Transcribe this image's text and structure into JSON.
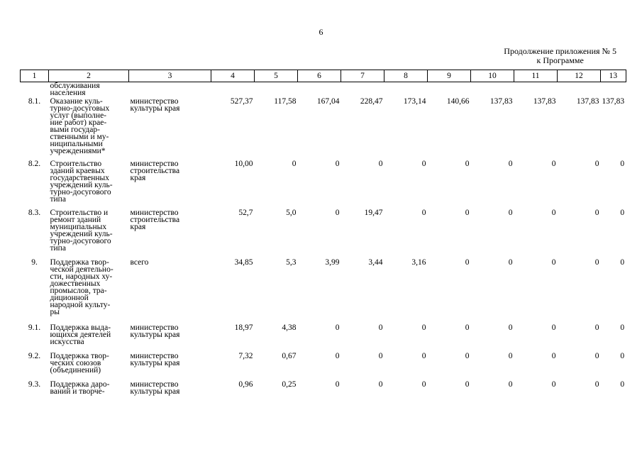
{
  "page_number": "6",
  "appendix_note": {
    "line1": "Продолжение приложения № 5",
    "line2": "к Программе"
  },
  "table": {
    "headers": [
      "1",
      "2",
      "3",
      "4",
      "5",
      "6",
      "7",
      "8",
      "9",
      "10",
      "11",
      "12",
      "13"
    ],
    "top_fragment": {
      "line1": "обслуживания",
      "line2": "населения"
    },
    "rows": [
      {
        "num": "8.1.",
        "name": [
          "Оказание куль-",
          "турно-досуговых",
          "услуг (выполне-",
          "ние работ) крае-",
          "выми государ-",
          "ственными и му-",
          "ниципальными",
          "учреждениями*"
        ],
        "resp": [
          "министерство",
          "культуры края"
        ],
        "values": [
          "527,37",
          "117,58",
          "167,04",
          "228,47",
          "173,14",
          "140,66",
          "137,83",
          "137,83",
          "137,83",
          "137,83"
        ]
      },
      {
        "num": "8.2.",
        "name": [
          "Строительство",
          "зданий краевых",
          "государственных",
          "учреждений куль-",
          "турно-досугового",
          "типа"
        ],
        "resp": [
          "министерство",
          "строительства",
          "края"
        ],
        "values": [
          "10,00",
          "0",
          "0",
          "0",
          "0",
          "0",
          "0",
          "0",
          "0",
          "0"
        ]
      },
      {
        "num": "8.3.",
        "name": [
          "Строительство и",
          "ремонт зданий",
          "муниципальных",
          "учреждений куль-",
          "турно-досугового",
          "типа"
        ],
        "resp": [
          "министерство",
          "строительства",
          "края"
        ],
        "values": [
          "52,7",
          "5,0",
          "0",
          "19,47",
          "0",
          "0",
          "0",
          "0",
          "0",
          "0"
        ]
      },
      {
        "num": "9.",
        "name": [
          "Поддержка твор-",
          "ческой деятельно-",
          "сти, народных ху-",
          "дожественных",
          "промыслов, тра-",
          "диционной",
          "народной культу-",
          "ры"
        ],
        "resp": [
          "всего"
        ],
        "values": [
          "34,85",
          "5,3",
          "3,99",
          "3,44",
          "3,16",
          "0",
          "0",
          "0",
          "0",
          "0"
        ]
      },
      {
        "num": "9.1.",
        "name": [
          "Поддержка выда-",
          "ющихся деятелей",
          "искусства"
        ],
        "resp": [
          "министерство",
          "культуры края"
        ],
        "values": [
          "18,97",
          "4,38",
          "0",
          "0",
          "0",
          "0",
          "0",
          "0",
          "0",
          "0"
        ]
      },
      {
        "num": "9.2.",
        "name": [
          "Поддержка твор-",
          "ческих союзов",
          "(объединений)"
        ],
        "resp": [
          "министерство",
          "культуры края"
        ],
        "values": [
          "7,32",
          "0,67",
          "0",
          "0",
          "0",
          "0",
          "0",
          "0",
          "0",
          "0"
        ]
      },
      {
        "num": "9.3.",
        "name": [
          "Поддержка даро-",
          "ваний и творче-"
        ],
        "resp": [
          "министерство",
          "культуры края"
        ],
        "values": [
          "0,96",
          "0,25",
          "0",
          "0",
          "0",
          "0",
          "0",
          "0",
          "0",
          "0"
        ]
      }
    ]
  }
}
